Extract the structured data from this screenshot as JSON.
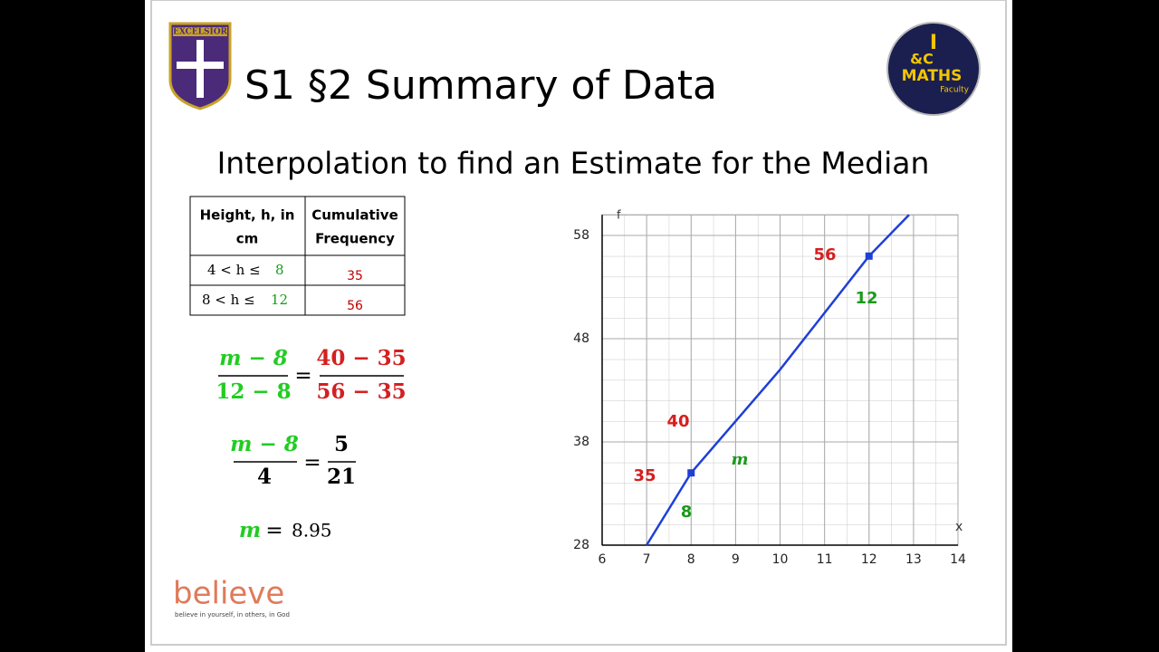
{
  "header": {
    "title": "S1 §2 Summary of Data",
    "subtitle": "Interpolation to find an Estimate for the Median",
    "school_logo": "EXCELSIOR",
    "faculty_logo": {
      "top": "I",
      "middle": "&C",
      "name": "MATHS",
      "sub": "Faculty"
    }
  },
  "table": {
    "header": [
      "Height, h, in",
      "cm",
      "Cumulative",
      "Frequency"
    ],
    "rows": [
      [
        "4 < h ≤",
        "8",
        "35"
      ],
      [
        "8 < h ≤",
        "12",
        "56"
      ]
    ]
  },
  "equations": [
    {
      "num_left": "m − 8",
      "den_left": "12 − 8",
      "eq": "=",
      "num_right": "40 − 35",
      "den_right": "56 − 35"
    },
    {
      "num_left": "m − 8",
      "den_left": "4",
      "eq": "=",
      "num_right": "5",
      "den_right": "21"
    },
    {
      "var": "m",
      "eq": "=",
      "result": "8.95"
    }
  ],
  "footer": {
    "brand": "believe",
    "tagline": "believe in yourself, in others, in God"
  },
  "chart_data": {
    "type": "line",
    "x_label": "x",
    "y_label": "f",
    "xlim": [
      6,
      14
    ],
    "ylim": [
      28,
      60
    ],
    "xticks": [
      6,
      7,
      8,
      9,
      10,
      11,
      12,
      13,
      14
    ],
    "yticks": [
      28,
      38,
      48,
      58
    ],
    "grid": true,
    "series": [
      {
        "color": "#1f3fd6",
        "x": [
          7,
          8,
          10,
          12,
          12.9
        ],
        "values": [
          28,
          35,
          45,
          56,
          60
        ]
      },
      {
        "color": "#1f3fd6",
        "marker": "square",
        "x": [
          8,
          12
        ],
        "values": [
          35,
          56
        ]
      }
    ],
    "annotations": [
      "56",
      "12",
      "40",
      "35",
      "m",
      "8"
    ]
  }
}
